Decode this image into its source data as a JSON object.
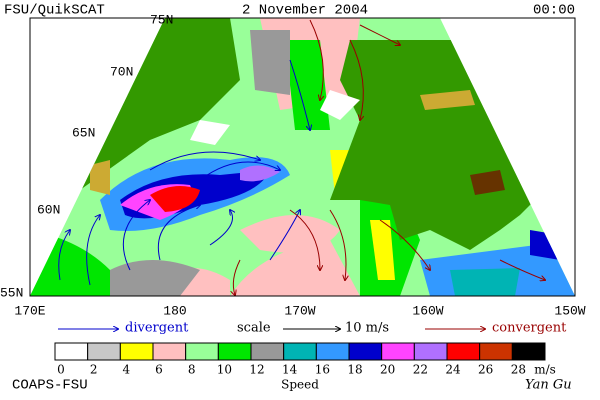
{
  "header": {
    "title": "FSU/QuikSCAT",
    "date": "2 November 2004",
    "time": "00:00"
  },
  "map": {
    "lat_labels": [
      "75N",
      "70N",
      "65N",
      "60N",
      "55N"
    ],
    "lon_labels": [
      "170E",
      "180",
      "170W",
      "160W",
      "150W"
    ]
  },
  "legend": {
    "divergent": "divergent",
    "scale": "scale",
    "scale_value": "10 m/s",
    "convergent": "convergent"
  },
  "colorbar": {
    "ticks": [
      0,
      2,
      4,
      6,
      8,
      10,
      12,
      14,
      16,
      18,
      20,
      22,
      24,
      26,
      28
    ],
    "unit": "m/s",
    "title": "Speed",
    "colors": [
      "#ffffff",
      "#c8c8c8",
      "#ffff00",
      "#ffc0c0",
      "#99ff99",
      "#00e600",
      "#999999",
      "#00b4b4",
      "#3399ff",
      "#0000cc",
      "#ff44ff",
      "#b070ff",
      "#ff0000",
      "#cc3300",
      "#000000"
    ]
  },
  "footer": {
    "left": "COAPS-FSU",
    "right": "Yan Gu"
  }
}
